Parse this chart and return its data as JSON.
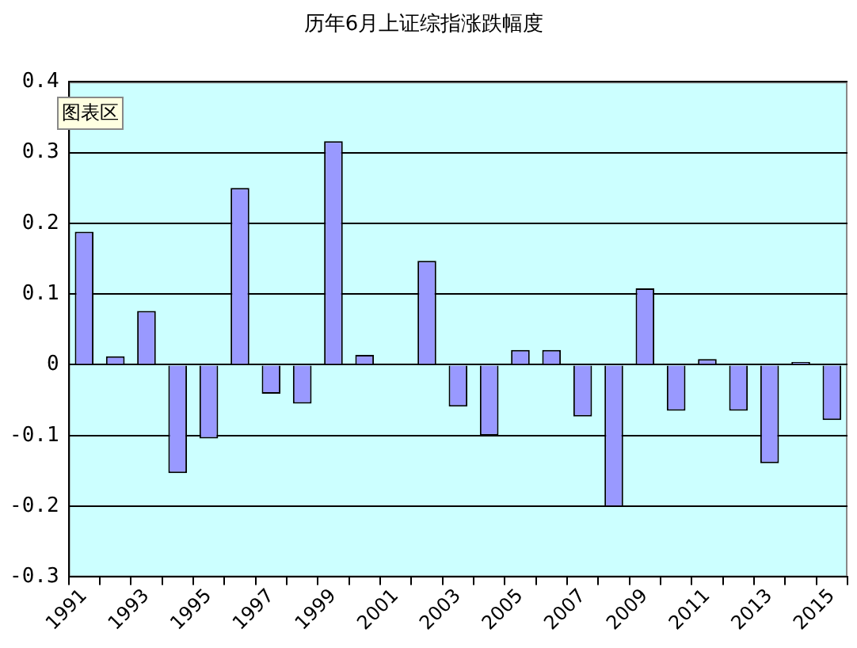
{
  "chart_data": {
    "type": "bar",
    "title": "历年6月上证综指涨跌幅度",
    "categories": [
      "1991",
      null,
      "1993",
      null,
      "1995",
      null,
      "1997",
      null,
      "1999",
      null,
      "2001",
      null,
      "2003",
      null,
      "2005",
      null,
      "2007",
      null,
      "2009",
      null,
      "2011",
      null,
      "2013",
      null,
      "2015"
    ],
    "values": [
      0.188,
      0.012,
      0.076,
      -0.153,
      -0.104,
      0.25,
      -0.041,
      -0.055,
      0.316,
      0.014,
      0,
      0.147,
      -0.059,
      -0.1,
      0.021,
      0.021,
      -0.073,
      -0.201,
      0.108,
      -0.065,
      0.008,
      -0.065,
      -0.139,
      0.004,
      -0.078
    ],
    "color": "#9999ff",
    "ylim": [
      -0.3,
      0.4
    ],
    "yticks": [
      -0.3,
      -0.2,
      -0.1,
      0,
      0.1,
      0.2,
      0.3,
      0.4
    ],
    "grid": "y",
    "legend": false,
    "annotations": [
      "图表区"
    ]
  }
}
